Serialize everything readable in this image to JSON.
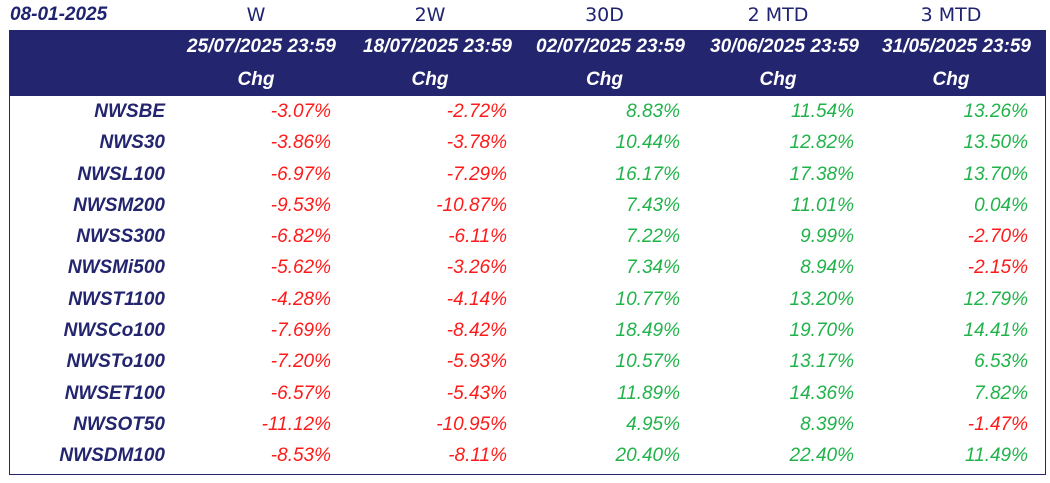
{
  "header": {
    "date": "08-01-2025",
    "periods": [
      "W",
      "2W",
      "30D",
      "2 MTD",
      "3 MTD"
    ],
    "ref_dates": [
      "25/07/2025 23:59",
      "18/07/2025 23:59",
      "02/07/2025 23:59",
      "30/06/2025 23:59",
      "31/05/2025 23:59"
    ],
    "chg_label": "Chg"
  },
  "colors": {
    "header_bg": "#23256e",
    "negative": "#ff1a1a",
    "positive": "#21b34a",
    "index_name": "#23256e"
  },
  "rows": [
    {
      "name": "NWSBE",
      "values": [
        "-3.07%",
        "-2.72%",
        "8.83%",
        "11.54%",
        "13.26%"
      ]
    },
    {
      "name": "NWS30",
      "values": [
        "-3.86%",
        "-3.78%",
        "10.44%",
        "12.82%",
        "13.50%"
      ]
    },
    {
      "name": "NWSL100",
      "values": [
        "-6.97%",
        "-7.29%",
        "16.17%",
        "17.38%",
        "13.70%"
      ]
    },
    {
      "name": "NWSM200",
      "values": [
        "-9.53%",
        "-10.87%",
        "7.43%",
        "11.01%",
        "0.04%"
      ]
    },
    {
      "name": "NWSS300",
      "values": [
        "-6.82%",
        "-6.11%",
        "7.22%",
        "9.99%",
        "-2.70%"
      ]
    },
    {
      "name": "NWSMi500",
      "values": [
        "-5.62%",
        "-3.26%",
        "7.34%",
        "8.94%",
        "-2.15%"
      ]
    },
    {
      "name": "NWST1100",
      "values": [
        "-4.28%",
        "-4.14%",
        "10.77%",
        "13.20%",
        "12.79%"
      ]
    },
    {
      "name": "NWSCo100",
      "values": [
        "-7.69%",
        "-8.42%",
        "18.49%",
        "19.70%",
        "14.41%"
      ]
    },
    {
      "name": "NWSTo100",
      "values": [
        "-7.20%",
        "-5.93%",
        "10.57%",
        "13.17%",
        "6.53%"
      ]
    },
    {
      "name": "NWSET100",
      "values": [
        "-6.57%",
        "-5.43%",
        "11.89%",
        "14.36%",
        "7.82%"
      ]
    },
    {
      "name": "NWSOT50",
      "values": [
        "-11.12%",
        "-10.95%",
        "4.95%",
        "8.39%",
        "-1.47%"
      ]
    },
    {
      "name": "NWSDM100",
      "values": [
        "-8.53%",
        "-8.11%",
        "20.40%",
        "22.40%",
        "11.49%"
      ]
    }
  ]
}
